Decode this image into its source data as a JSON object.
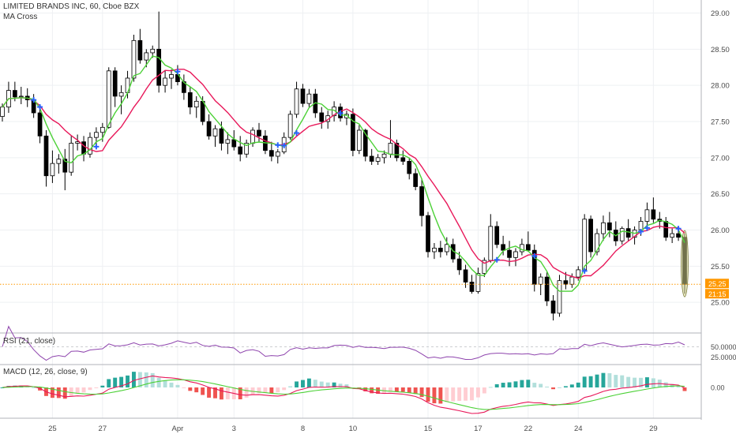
{
  "chart_data": {
    "type": "candlestick",
    "title": "LIMITED BRANDS INC, 60, Cboe BZX",
    "indicator_label": "MA Cross",
    "price_axis": {
      "ticks": [
        29.0,
        28.5,
        28.0,
        27.5,
        27.0,
        26.5,
        26.0,
        25.5,
        25.0
      ],
      "tick_labels": [
        "29.00",
        "28.50",
        "28.00",
        "27.50",
        "27.00",
        "26.50",
        "26.00",
        "25.50",
        "25.00"
      ],
      "ylim": [
        24.62,
        29.18
      ]
    },
    "x_axis": {
      "tick_labels": [
        "25",
        "27",
        "Apr",
        "3",
        "8",
        "10",
        "15",
        "17",
        "22",
        "24",
        "29"
      ],
      "tick_bar_index": [
        8,
        16,
        28,
        37,
        48,
        56,
        68,
        76,
        84,
        92,
        104
      ]
    },
    "last_price": "25.25",
    "countdown": "21:15",
    "candles": [
      [
        27.57,
        27.75,
        27.5,
        27.7
      ],
      [
        27.7,
        28.05,
        27.62,
        27.93
      ],
      [
        27.93,
        28.05,
        27.78,
        27.84
      ],
      [
        27.84,
        27.98,
        27.74,
        27.85
      ],
      [
        27.85,
        27.96,
        27.7,
        27.8
      ],
      [
        27.8,
        27.88,
        27.55,
        27.62
      ],
      [
        27.62,
        27.68,
        27.2,
        27.3
      ],
      [
        27.3,
        27.38,
        26.6,
        26.75
      ],
      [
        26.75,
        27.1,
        26.65,
        26.92
      ],
      [
        26.92,
        27.05,
        26.78,
        26.98
      ],
      [
        26.98,
        27.12,
        26.55,
        26.8
      ],
      [
        26.8,
        27.3,
        26.75,
        27.2
      ],
      [
        27.2,
        27.32,
        27.1,
        27.22
      ],
      [
        27.22,
        27.3,
        26.95,
        27.05
      ],
      [
        27.05,
        27.35,
        27.0,
        27.28
      ],
      [
        27.28,
        27.42,
        27.15,
        27.35
      ],
      [
        27.35,
        27.48,
        27.22,
        27.42
      ],
      [
        27.42,
        28.25,
        27.4,
        28.2
      ],
      [
        28.2,
        28.25,
        27.7,
        27.85
      ],
      [
        27.85,
        28.0,
        27.6,
        27.9
      ],
      [
        27.9,
        28.2,
        27.82,
        28.1
      ],
      [
        28.1,
        28.7,
        28.05,
        28.62
      ],
      [
        28.62,
        28.78,
        28.3,
        28.35
      ],
      [
        28.35,
        28.5,
        28.25,
        28.45
      ],
      [
        28.45,
        28.55,
        28.38,
        28.5
      ],
      [
        28.5,
        29.02,
        27.9,
        28.0
      ],
      [
        28.0,
        28.2,
        27.9,
        28.1
      ],
      [
        28.1,
        28.22,
        27.95,
        28.15
      ],
      [
        28.15,
        28.28,
        28.0,
        28.05
      ],
      [
        28.05,
        28.15,
        27.8,
        27.9
      ],
      [
        27.9,
        27.98,
        27.6,
        27.7
      ],
      [
        27.7,
        27.85,
        27.55,
        27.78
      ],
      [
        27.78,
        27.85,
        27.45,
        27.5
      ],
      [
        27.5,
        27.6,
        27.25,
        27.3
      ],
      [
        27.3,
        27.45,
        27.15,
        27.4
      ],
      [
        27.4,
        27.5,
        27.1,
        27.2
      ],
      [
        27.2,
        27.35,
        27.05,
        27.25
      ],
      [
        27.25,
        27.38,
        27.1,
        27.15
      ],
      [
        27.15,
        27.3,
        26.95,
        27.05
      ],
      [
        27.05,
        27.25,
        27.0,
        27.2
      ],
      [
        27.2,
        27.42,
        27.15,
        27.38
      ],
      [
        27.38,
        27.48,
        27.22,
        27.3
      ],
      [
        27.3,
        27.38,
        27.05,
        27.1
      ],
      [
        27.1,
        27.22,
        26.95,
        27.02
      ],
      [
        27.02,
        27.12,
        26.92,
        27.08
      ],
      [
        27.08,
        27.35,
        27.05,
        27.28
      ],
      [
        27.28,
        27.65,
        27.25,
        27.6
      ],
      [
        27.6,
        28.05,
        27.55,
        27.95
      ],
      [
        27.95,
        28.02,
        27.7,
        27.75
      ],
      [
        27.75,
        27.95,
        27.7,
        27.88
      ],
      [
        27.88,
        27.95,
        27.55,
        27.62
      ],
      [
        27.62,
        27.7,
        27.4,
        27.5
      ],
      [
        27.5,
        27.65,
        27.4,
        27.58
      ],
      [
        27.58,
        27.78,
        27.5,
        27.7
      ],
      [
        27.7,
        27.75,
        27.5,
        27.55
      ],
      [
        27.55,
        27.65,
        27.45,
        27.6
      ],
      [
        27.6,
        27.68,
        27.02,
        27.1
      ],
      [
        27.1,
        27.45,
        27.05,
        27.38
      ],
      [
        27.38,
        27.4,
        26.95,
        27.02
      ],
      [
        27.02,
        27.12,
        26.9,
        26.95
      ],
      [
        26.95,
        27.05,
        26.9,
        27.0
      ],
      [
        27.0,
        27.1,
        26.92,
        27.05
      ],
      [
        27.05,
        27.52,
        27.0,
        27.2
      ],
      [
        27.2,
        27.25,
        26.95,
        27.0
      ],
      [
        27.0,
        27.1,
        26.9,
        26.95
      ],
      [
        26.95,
        27.0,
        26.7,
        26.78
      ],
      [
        26.78,
        26.85,
        26.55,
        26.6
      ],
      [
        26.6,
        26.7,
        26.05,
        26.2
      ],
      [
        26.2,
        26.25,
        25.62,
        25.7
      ],
      [
        25.7,
        25.82,
        25.6,
        25.75
      ],
      [
        25.75,
        25.85,
        25.62,
        25.7
      ],
      [
        25.7,
        25.9,
        25.65,
        25.8
      ],
      [
        25.8,
        25.88,
        25.55,
        25.6
      ],
      [
        25.6,
        25.7,
        25.38,
        25.45
      ],
      [
        25.45,
        25.52,
        25.2,
        25.28
      ],
      [
        25.28,
        25.38,
        25.12,
        25.15
      ],
      [
        25.15,
        25.48,
        25.12,
        25.4
      ],
      [
        25.4,
        25.62,
        25.35,
        25.58
      ],
      [
        25.58,
        26.22,
        25.55,
        26.05
      ],
      [
        26.05,
        26.12,
        25.75,
        25.8
      ],
      [
        25.8,
        25.92,
        25.65,
        25.72
      ],
      [
        25.72,
        25.85,
        25.5,
        25.62
      ],
      [
        25.62,
        25.75,
        25.5,
        25.7
      ],
      [
        25.7,
        25.88,
        25.65,
        25.8
      ],
      [
        25.8,
        25.98,
        25.7,
        25.72
      ],
      [
        25.72,
        25.8,
        25.15,
        25.25
      ],
      [
        25.25,
        25.4,
        25.1,
        25.35
      ],
      [
        25.35,
        25.42,
        24.95,
        25.02
      ],
      [
        25.02,
        25.1,
        24.75,
        24.85
      ],
      [
        24.85,
        25.38,
        24.8,
        25.3
      ],
      [
        25.3,
        25.42,
        25.18,
        25.25
      ],
      [
        25.25,
        25.4,
        25.2,
        25.35
      ],
      [
        25.35,
        25.5,
        25.3,
        25.45
      ],
      [
        25.45,
        26.22,
        25.4,
        26.15
      ],
      [
        26.15,
        26.2,
        25.62,
        25.7
      ],
      [
        25.7,
        26.02,
        25.65,
        25.95
      ],
      [
        25.95,
        26.2,
        25.85,
        26.1
      ],
      [
        26.1,
        26.25,
        25.9,
        26.0
      ],
      [
        26.0,
        26.12,
        25.78,
        25.85
      ],
      [
        25.85,
        26.05,
        25.8,
        26.02
      ],
      [
        26.02,
        26.15,
        25.85,
        25.9
      ],
      [
        25.9,
        26.05,
        25.8,
        26.0
      ],
      [
        26.0,
        26.18,
        25.92,
        26.12
      ],
      [
        26.12,
        26.38,
        26.05,
        26.28
      ],
      [
        26.28,
        26.45,
        26.1,
        26.15
      ],
      [
        26.15,
        26.25,
        26.02,
        26.12
      ],
      [
        26.12,
        26.18,
        25.85,
        25.9
      ],
      [
        25.9,
        26.02,
        25.82,
        25.95
      ],
      [
        25.95,
        26.0,
        25.85,
        25.9
      ],
      [
        25.9,
        25.95,
        25.12,
        25.25
      ]
    ],
    "rsi": {
      "label": "RSI (21, close)",
      "ticks": [
        "50.0000",
        "25.0000"
      ]
    },
    "macd": {
      "label": "MACD (12, 26, close, 9)",
      "ticks": [
        "0.00"
      ]
    },
    "colors": {
      "up": "#ffffff",
      "down": "#000000",
      "ma_fast": "#4cd137",
      "ma_slow": "#e8185a",
      "cross": "#2962ff",
      "last_price": "#ff9800",
      "rsi": "#8e44ad",
      "macd_line": "#e8185a",
      "signal_line": "#4cd137",
      "hist_pos": "#26a69a",
      "hist_pos_light": "#b2dfdb",
      "hist_neg": "#ef5350",
      "hist_neg_light": "#ffcdd2"
    }
  }
}
